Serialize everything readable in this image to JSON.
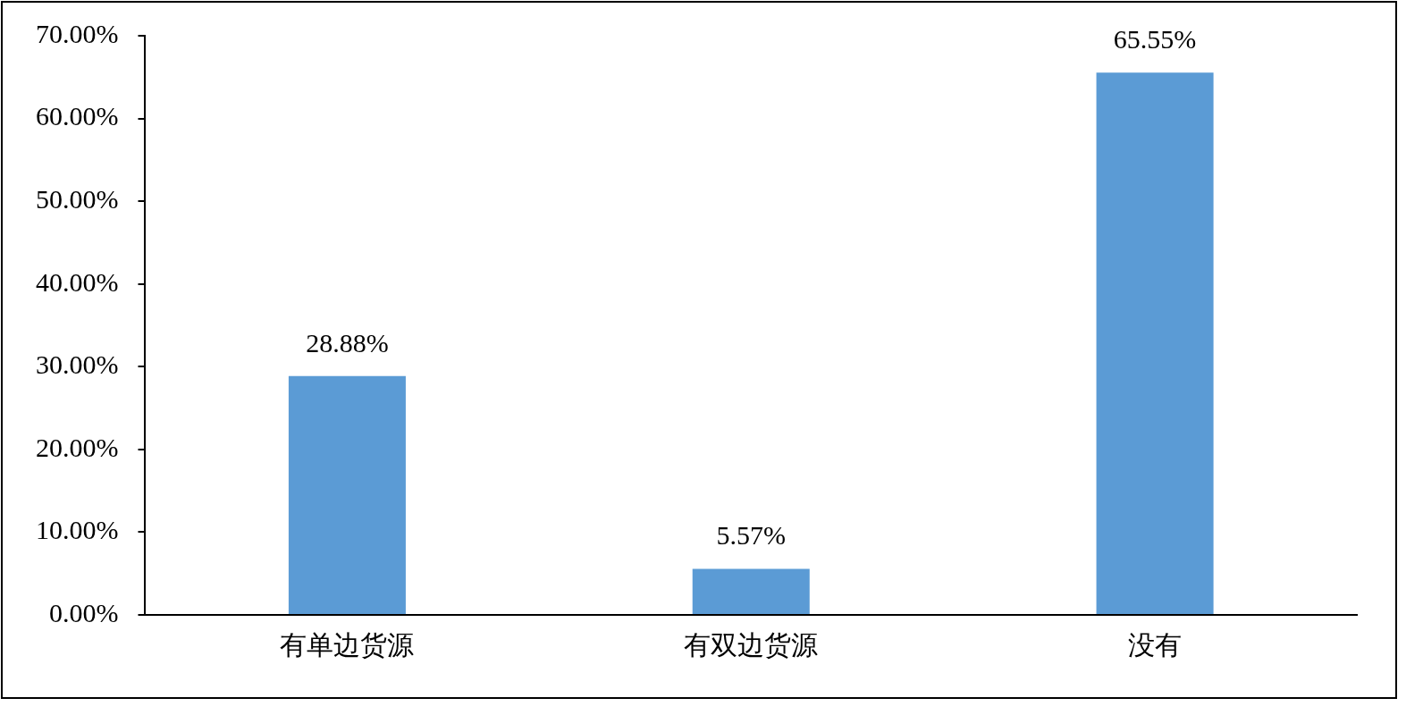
{
  "chart_data": {
    "type": "bar",
    "categories": [
      "有单边货源",
      "有双边货源",
      "没有"
    ],
    "values": [
      28.88,
      5.57,
      65.55
    ],
    "value_labels": [
      "28.88%",
      "5.57%",
      "65.55%"
    ],
    "color": "#5b9bd5",
    "ylim": [
      0,
      70
    ],
    "yticks": [
      {
        "value": 0,
        "label": "0.00%"
      },
      {
        "value": 10,
        "label": "10.00%"
      },
      {
        "value": 20,
        "label": "20.00%"
      },
      {
        "value": 30,
        "label": "30.00%"
      },
      {
        "value": 40,
        "label": "40.00%"
      },
      {
        "value": 50,
        "label": "50.00%"
      },
      {
        "value": 60,
        "label": "60.00%"
      },
      {
        "value": 70,
        "label": "70.00%"
      }
    ],
    "grid": false,
    "legend": false
  }
}
